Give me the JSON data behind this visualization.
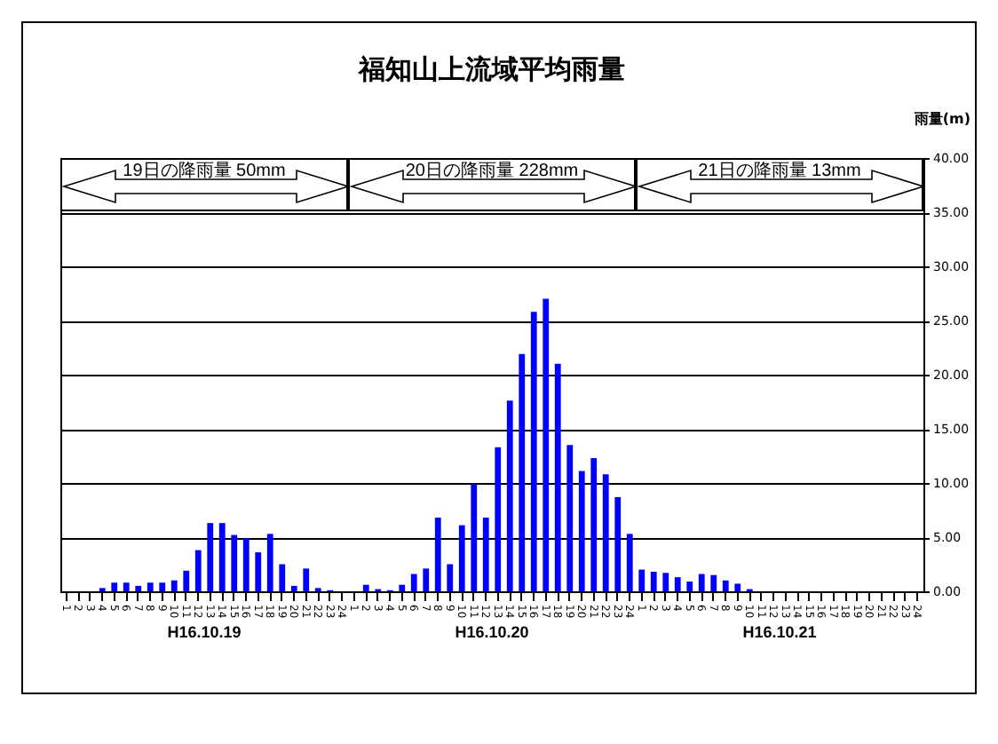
{
  "chart_data": {
    "type": "bar",
    "title": "福知山上流域平均雨量",
    "ylabel": "雨量(m)",
    "categories": [
      "1",
      "2",
      "3",
      "4",
      "5",
      "6",
      "7",
      "8",
      "9",
      "10",
      "11",
      "12",
      "13",
      "14",
      "15",
      "16",
      "17",
      "18",
      "19",
      "20",
      "21",
      "22",
      "23",
      "24",
      "1",
      "2",
      "3",
      "4",
      "5",
      "6",
      "7",
      "8",
      "9",
      "10",
      "11",
      "12",
      "13",
      "14",
      "15",
      "16",
      "17",
      "18",
      "19",
      "20",
      "21",
      "22",
      "23",
      "24",
      "1",
      "2",
      "3",
      "4",
      "5",
      "6",
      "7",
      "8",
      "9",
      "10",
      "11",
      "12",
      "13",
      "14",
      "15",
      "16",
      "17",
      "18",
      "19",
      "20",
      "21",
      "22",
      "23",
      "24"
    ],
    "values": [
      0,
      0,
      0,
      0.3,
      0.8,
      0.8,
      0.5,
      0.8,
      0.8,
      1.0,
      1.9,
      3.8,
      6.3,
      6.3,
      5.2,
      4.9,
      3.6,
      5.3,
      2.5,
      0.5,
      2.1,
      0.3,
      0.1,
      0,
      0,
      0.6,
      0.2,
      0.1,
      0.6,
      1.6,
      2.1,
      6.8,
      2.5,
      6.1,
      9.9,
      6.8,
      13.3,
      17.6,
      21.9,
      25.8,
      27.0,
      21.0,
      13.5,
      11.1,
      12.3,
      10.8,
      8.7,
      5.3,
      2.0,
      1.8,
      1.7,
      1.3,
      0.9,
      1.6,
      1.5,
      1.0,
      0.7,
      0.2,
      0,
      0,
      0,
      0,
      0,
      0,
      0,
      0,
      0,
      0,
      0,
      0,
      0,
      0
    ],
    "color": "#0000ff",
    "ylim": [
      0,
      40
    ],
    "yticks": [
      {
        "value": 0,
        "label": "0.00"
      },
      {
        "value": 5,
        "label": "5.00"
      },
      {
        "value": 10,
        "label": "10.00"
      },
      {
        "value": 15,
        "label": "15.00"
      },
      {
        "value": 20,
        "label": "20.00"
      },
      {
        "value": 25,
        "label": "25.00"
      },
      {
        "value": 30,
        "label": "30.00"
      },
      {
        "value": 35,
        "label": "35.00"
      },
      {
        "value": 40,
        "label": "40.00"
      }
    ],
    "grid": "y",
    "annotations": [
      "19日の降雨量  50mm",
      "20日の降雨量  228mm",
      "21日の降雨量  13mm",
      "H16.10.19",
      "H16.10.20",
      "H16.10.21"
    ]
  }
}
